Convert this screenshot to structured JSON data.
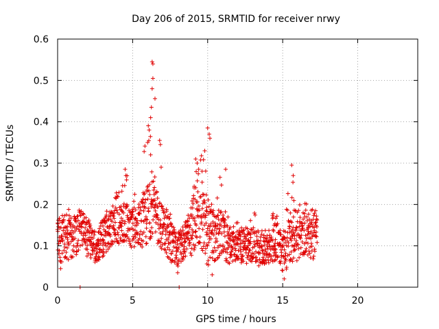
{
  "chart_data": {
    "type": "scatter",
    "title": "Day 206 of 2015, SRMTID for receiver nrwy",
    "xlabel": "GPS time / hours",
    "ylabel": "SRMTID / TECUs",
    "xlim": [
      0,
      24
    ],
    "ylim": [
      0,
      0.6
    ],
    "grid": true,
    "marker": "+",
    "series_color": "#e00000",
    "x_ticks": [
      0,
      5,
      10,
      15,
      20
    ],
    "x_tick_labels": [
      "0",
      "5",
      "10",
      "15",
      "20"
    ],
    "y_ticks": [
      0,
      0.1,
      0.2,
      0.3,
      0.4,
      0.5,
      0.6
    ],
    "y_tick_labels": [
      "0",
      "0.1",
      "0.2",
      "0.3",
      "0.4",
      "0.5",
      "0.6"
    ],
    "envelope_note": "Dense scatter approximated: x spans 0-17.3 h, representative per-0.5h band [min, typical, max] values below.",
    "bands": [
      {
        "x": 0.0,
        "min": 0.05,
        "typ": 0.12,
        "max": 0.17
      },
      {
        "x": 0.5,
        "min": 0.04,
        "typ": 0.12,
        "max": 0.2
      },
      {
        "x": 1.0,
        "min": 0.06,
        "typ": 0.11,
        "max": 0.18
      },
      {
        "x": 1.5,
        "min": 0.07,
        "typ": 0.14,
        "max": 0.2
      },
      {
        "x": 2.0,
        "min": 0.06,
        "typ": 0.12,
        "max": 0.17
      },
      {
        "x": 2.5,
        "min": 0.05,
        "typ": 0.09,
        "max": 0.15
      },
      {
        "x": 3.0,
        "min": 0.06,
        "typ": 0.12,
        "max": 0.17
      },
      {
        "x": 3.5,
        "min": 0.08,
        "typ": 0.14,
        "max": 0.2
      },
      {
        "x": 4.0,
        "min": 0.09,
        "typ": 0.15,
        "max": 0.24
      },
      {
        "x": 4.5,
        "min": 0.1,
        "typ": 0.16,
        "max": 0.29
      },
      {
        "x": 5.0,
        "min": 0.08,
        "typ": 0.14,
        "max": 0.22
      },
      {
        "x": 5.5,
        "min": 0.07,
        "typ": 0.15,
        "max": 0.24
      },
      {
        "x": 6.0,
        "min": 0.09,
        "typ": 0.18,
        "max": 0.42
      },
      {
        "x": 6.3,
        "min": 0.1,
        "typ": 0.2,
        "max": 0.55
      },
      {
        "x": 6.8,
        "min": 0.08,
        "typ": 0.16,
        "max": 0.36
      },
      {
        "x": 7.5,
        "min": 0.05,
        "typ": 0.11,
        "max": 0.2
      },
      {
        "x": 8.0,
        "min": 0.04,
        "typ": 0.09,
        "max": 0.13
      },
      {
        "x": 8.5,
        "min": 0.05,
        "typ": 0.11,
        "max": 0.16
      },
      {
        "x": 9.0,
        "min": 0.06,
        "typ": 0.14,
        "max": 0.22
      },
      {
        "x": 9.3,
        "min": 0.07,
        "typ": 0.16,
        "max": 0.31
      },
      {
        "x": 10.0,
        "min": 0.03,
        "typ": 0.14,
        "max": 0.39
      },
      {
        "x": 10.5,
        "min": 0.05,
        "typ": 0.12,
        "max": 0.22
      },
      {
        "x": 11.0,
        "min": 0.06,
        "typ": 0.13,
        "max": 0.29
      },
      {
        "x": 11.5,
        "min": 0.04,
        "typ": 0.09,
        "max": 0.15
      },
      {
        "x": 12.0,
        "min": 0.05,
        "typ": 0.1,
        "max": 0.16
      },
      {
        "x": 12.5,
        "min": 0.04,
        "typ": 0.09,
        "max": 0.14
      },
      {
        "x": 13.0,
        "min": 0.04,
        "typ": 0.1,
        "max": 0.19
      },
      {
        "x": 13.5,
        "min": 0.04,
        "typ": 0.09,
        "max": 0.16
      },
      {
        "x": 14.0,
        "min": 0.05,
        "typ": 0.09,
        "max": 0.14
      },
      {
        "x": 14.5,
        "min": 0.05,
        "typ": 0.11,
        "max": 0.2
      },
      {
        "x": 15.0,
        "min": 0.02,
        "typ": 0.08,
        "max": 0.13
      },
      {
        "x": 15.5,
        "min": 0.04,
        "typ": 0.12,
        "max": 0.3
      },
      {
        "x": 16.0,
        "min": 0.05,
        "typ": 0.11,
        "max": 0.2
      },
      {
        "x": 16.5,
        "min": 0.07,
        "typ": 0.13,
        "max": 0.21
      },
      {
        "x": 17.0,
        "min": 0.05,
        "typ": 0.12,
        "max": 0.19
      }
    ],
    "notable_points": [
      {
        "x": 6.3,
        "y": 0.545
      },
      {
        "x": 6.35,
        "y": 0.54
      },
      {
        "x": 6.35,
        "y": 0.505
      },
      {
        "x": 6.3,
        "y": 0.48
      },
      {
        "x": 6.25,
        "y": 0.435
      },
      {
        "x": 6.2,
        "y": 0.41
      },
      {
        "x": 6.1,
        "y": 0.38
      },
      {
        "x": 6.0,
        "y": 0.35
      },
      {
        "x": 6.2,
        "y": 0.32
      },
      {
        "x": 6.8,
        "y": 0.355
      },
      {
        "x": 6.85,
        "y": 0.345
      },
      {
        "x": 6.9,
        "y": 0.29
      },
      {
        "x": 10.0,
        "y": 0.385
      },
      {
        "x": 10.1,
        "y": 0.37
      },
      {
        "x": 10.15,
        "y": 0.36
      },
      {
        "x": 9.2,
        "y": 0.31
      },
      {
        "x": 9.3,
        "y": 0.3
      },
      {
        "x": 9.4,
        "y": 0.285
      },
      {
        "x": 11.2,
        "y": 0.285
      },
      {
        "x": 15.6,
        "y": 0.295
      },
      {
        "x": 15.7,
        "y": 0.27
      },
      {
        "x": 4.5,
        "y": 0.285
      },
      {
        "x": 4.55,
        "y": 0.27
      },
      {
        "x": 1.5,
        "y": 0.0
      },
      {
        "x": 8.1,
        "y": 0.0
      },
      {
        "x": 10.3,
        "y": 0.03
      },
      {
        "x": 15.1,
        "y": 0.02
      },
      {
        "x": 0.2,
        "y": 0.045
      },
      {
        "x": 8.0,
        "y": 0.035
      }
    ]
  }
}
